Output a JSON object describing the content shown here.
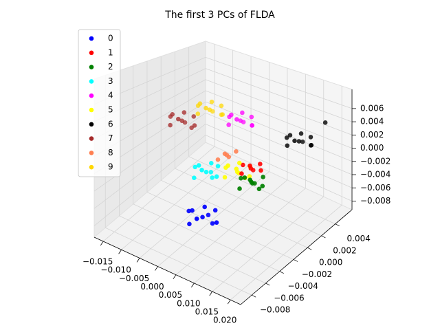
{
  "chart_data": {
    "type": "scatter3d",
    "title": "The first 3 PCs of FLDA",
    "legend": "upper left",
    "grid": true,
    "xlim": [
      -0.0175,
      0.0228
    ],
    "ylim": [
      -0.0096,
      0.0064
    ],
    "zlim": [
      -0.0093,
      0.0089
    ],
    "xticks": [
      {
        "value": -0.015,
        "label": "−0.015"
      },
      {
        "value": -0.01,
        "label": "−0.010"
      },
      {
        "value": -0.005,
        "label": "−0.005"
      },
      {
        "value": 0,
        "label": "0.000"
      },
      {
        "value": 0.005,
        "label": "0.005"
      },
      {
        "value": 0.01,
        "label": "0.010"
      },
      {
        "value": 0.015,
        "label": "0.015"
      },
      {
        "value": 0.02,
        "label": "0.020"
      }
    ],
    "yticks": [
      {
        "value": -0.008,
        "label": "−0.008"
      },
      {
        "value": -0.006,
        "label": "−0.006"
      },
      {
        "value": -0.004,
        "label": "−0.004"
      },
      {
        "value": -0.002,
        "label": "−0.002"
      },
      {
        "value": 0,
        "label": "0.000"
      },
      {
        "value": 0.002,
        "label": "0.002"
      },
      {
        "value": 0.004,
        "label": "0.004"
      }
    ],
    "zticks": [
      {
        "value": -0.008,
        "label": "−0.008"
      },
      {
        "value": -0.006,
        "label": "−0.006"
      },
      {
        "value": -0.004,
        "label": "−0.004"
      },
      {
        "value": -0.002,
        "label": "−0.002"
      },
      {
        "value": 0,
        "label": "0.000"
      },
      {
        "value": 0.002,
        "label": "0.002"
      },
      {
        "value": 0.004,
        "label": "0.004"
      },
      {
        "value": 0.006,
        "label": "0.006"
      }
    ],
    "series": [
      {
        "name": "0",
        "color": "#0000ff",
        "x": [
          0.0058,
          0.0076,
          0.0039,
          0.0069,
          0.0047,
          0.0089,
          0.0028,
          0.0072,
          0.0043,
          0.0062
        ],
        "y": [
          -0.0062,
          -0.0053,
          -0.0071,
          -0.0076,
          -0.0048,
          -0.0058,
          -0.0066,
          -0.0055,
          -0.0069,
          -0.0061
        ],
        "z": [
          -0.0048,
          -0.0042,
          -0.0054,
          -0.004,
          -0.0056,
          -0.0051,
          -0.0044,
          -0.0057,
          -0.0039,
          -0.0036
        ]
      },
      {
        "name": "1",
        "color": "#ff0000",
        "x": [
          0.0122,
          0.0136,
          0.011,
          0.0129,
          0.0115,
          0.0142,
          0.0106
        ],
        "y": [
          -0.0026,
          -0.002,
          -0.0033,
          -0.0031,
          -0.0019,
          -0.0022,
          -0.0029
        ],
        "z": [
          0.0002,
          0.0007,
          -0.0003,
          0.0009,
          -0.0005,
          0.0001,
          0.0005
        ]
      },
      {
        "name": "2",
        "color": "#008000",
        "x": [
          0.0131,
          0.0148,
          0.0116,
          0.0139,
          0.0123,
          0.0154,
          0.011,
          0.0141,
          0.0126,
          0.0134
        ],
        "y": [
          -0.003,
          -0.0022,
          -0.0039,
          -0.0036,
          -0.0021,
          -0.0026,
          -0.0034,
          -0.0024,
          -0.0037,
          -0.003
        ],
        "z": [
          -0.0011,
          -0.0006,
          -0.0017,
          -0.0004,
          -0.0019,
          -0.0014,
          -0.0008,
          -0.0021,
          -0.0003,
          -0.0012
        ]
      },
      {
        "name": "3",
        "color": "#00ffff",
        "x": [
          0.0049,
          0.0066,
          0.0031,
          0.0058,
          0.0039,
          0.0072,
          0.0026,
          0.0054,
          0.0042,
          0.0061
        ],
        "y": [
          -0.0052,
          -0.0044,
          -0.006,
          -0.0063,
          -0.004,
          -0.0049,
          -0.0056,
          -0.0046,
          -0.0059,
          -0.0051
        ],
        "z": [
          -0.0002,
          0.0004,
          -0.0008,
          0.0007,
          -0.001,
          -0.0005,
          0.0002,
          -0.0011,
          0.0008,
          0.001
        ]
      },
      {
        "name": "4",
        "color": "#ff00ff",
        "x": [
          0.0036,
          0.0053,
          0.0019,
          0.0045,
          0.0027,
          0.006,
          0.0013,
          0.0049,
          0.0024,
          0.0039
        ],
        "y": [
          0.0004,
          0.0011,
          -0.0004,
          -0.0006,
          0.0013,
          0.0008,
          0,
          0.0014,
          -0.0003,
          0.0005
        ],
        "z": [
          0.0034,
          0.0039,
          0.0029,
          0.0042,
          0.0026,
          0.003,
          0.0037,
          0.0025,
          0.0043,
          0.0045
        ]
      },
      {
        "name": "5",
        "color": "#ffff00",
        "x": [
          0.01,
          0.0118,
          0.0083,
          0.0109,
          0.0091,
          0.0126,
          0.0076,
          0.0112,
          0.0088,
          0.0104
        ],
        "y": [
          -0.0034,
          -0.0025,
          -0.0043,
          -0.004,
          -0.0027,
          -0.003,
          -0.0038,
          -0.0029,
          -0.0041,
          -0.0033
        ],
        "z": [
          -0.0002,
          0.0003,
          -0.0007,
          0.0006,
          -0.0009,
          -0.0005,
          0.0001,
          -0.001,
          0.0007,
          0.0009
        ]
      },
      {
        "name": "6",
        "color": "#000000",
        "x": [
          0.0153,
          0.017,
          0.0136,
          0.0162,
          0.0144,
          0.0178,
          0.0129,
          0.0166,
          0.014,
          0.0157,
          0.0189
        ],
        "y": [
          0.0027,
          0.0035,
          0.0019,
          0.0016,
          0.0037,
          0.0031,
          0.0022,
          0.0038,
          0.0021,
          0.0028,
          0.0046
        ],
        "z": [
          0.0016,
          0.0021,
          0.0011,
          0.0024,
          0.0008,
          0.0013,
          0.0019,
          0.0007,
          0.0025,
          0.0027,
          0.004
        ]
      },
      {
        "name": "7",
        "color": "#a52a2a",
        "x": [
          -0.0056,
          -0.0039,
          -0.0073,
          -0.0047,
          -0.0065,
          -0.0031,
          -0.008,
          -0.0043,
          -0.0069,
          -0.0052
        ],
        "y": [
          -0.0032,
          -0.0024,
          -0.004,
          -0.0042,
          -0.0023,
          -0.0027,
          -0.0036,
          -0.0025,
          -0.0039,
          -0.0031
        ],
        "z": [
          0.0034,
          0.0039,
          0.0029,
          0.0042,
          0.0026,
          0.003,
          0.0037,
          0.0024,
          0.0043,
          0.0045
        ]
      },
      {
        "name": "8",
        "color": "#ff7f50",
        "x": [
          0.0077,
          0.0091,
          0.0064,
          0.0085,
          0.0069
        ],
        "y": [
          -0.0037,
          -0.0031,
          -0.0043,
          -0.0044,
          -0.003
        ],
        "z": [
          0.0016,
          0.002,
          0.0011,
          0.0022,
          0.0009
        ]
      },
      {
        "name": "9",
        "color": "#ffd700",
        "x": [
          -0.0024,
          -0.0007,
          -0.0041,
          -0.0015,
          -0.0033,
          0.0002,
          -0.0048,
          -0.0011,
          -0.0037,
          -0.002
        ],
        "y": [
          -0.0009,
          -0.0001,
          -0.0017,
          -0.0019,
          0,
          -0.0004,
          -0.0013,
          0.0001,
          -0.0016,
          -0.0008
        ],
        "z": [
          0.0044,
          0.0049,
          0.0039,
          0.0052,
          0.0036,
          0.004,
          0.0047,
          0.0035,
          0.0053,
          0.0055
        ]
      }
    ]
  }
}
